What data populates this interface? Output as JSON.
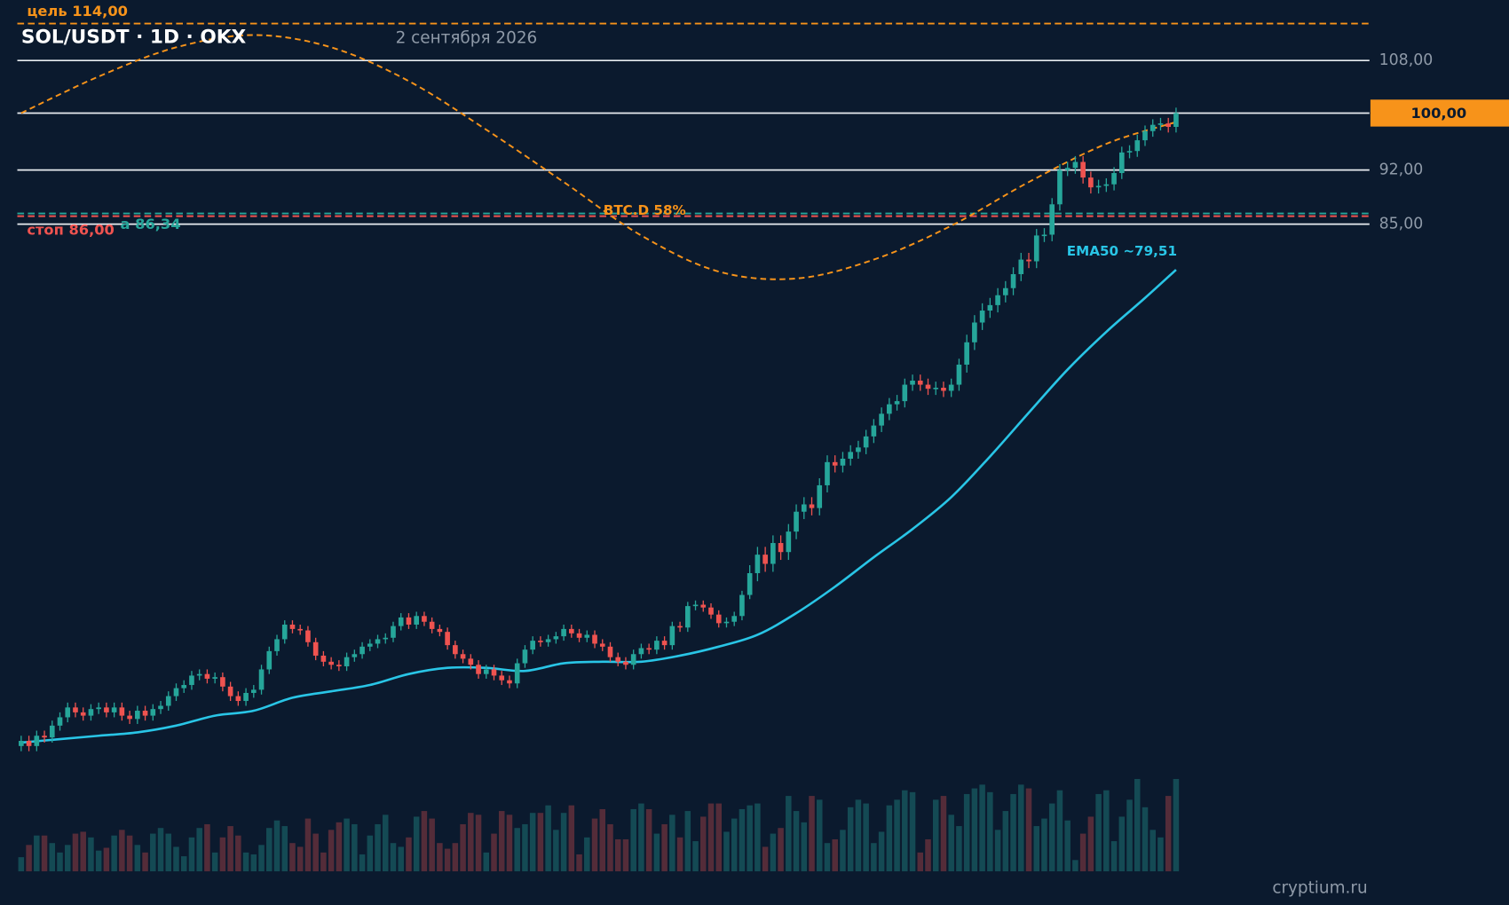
{
  "chart_data": {
    "type": "candlestick",
    "title": "SOL/USDT · 1D · OKX",
    "subtitle": "2 сентября 2026",
    "watermark": "cryptium.ru",
    "log_scale": true,
    "ylim": [
      38,
      118
    ],
    "yticks": [
      {
        "value": 108,
        "label": "108,00"
      },
      {
        "value": 92,
        "label": "92,00"
      },
      {
        "value": 85,
        "label": "85,00"
      }
    ],
    "last_price": {
      "value": 100,
      "label": "100,00",
      "color": "#f7931a"
    },
    "up_color": "#26a69a",
    "down_color": "#ef5350",
    "open": [
      39.6,
      39.9,
      39.6,
      40.2,
      40.1,
      40.8,
      41.3,
      41.9,
      41.6,
      41.4,
      41.8,
      41.9,
      41.6,
      41.9,
      41.4,
      41.2,
      41.7,
      41.4,
      41.8,
      42.0,
      42.6,
      43.1,
      43.3,
      43.9,
      44.0,
      43.7,
      43.8,
      43.2,
      42.6,
      42.3,
      42.8,
      43.0,
      44.3,
      45.5,
      46.3,
      47.3,
      47.0,
      46.9,
      46.1,
      45.2,
      44.8,
      44.6,
      44.5,
      45.1,
      45.3,
      45.8,
      46.0,
      46.3,
      46.4,
      47.2,
      47.8,
      47.3,
      47.9,
      47.5,
      47.0,
      46.8,
      45.9,
      45.3,
      45.0,
      44.6,
      44.0,
      44.3,
      43.9,
      43.6,
      43.4,
      44.7,
      45.6,
      46.2,
      46.1,
      46.3,
      46.5,
      47.0,
      46.7,
      46.4,
      46.6,
      46.0,
      45.8,
      45.1,
      44.8,
      44.6,
      45.3,
      45.7,
      45.6,
      46.2,
      45.9,
      47.2,
      47.1,
      48.6,
      48.7,
      48.5,
      48.0,
      47.4,
      47.5,
      47.9,
      49.4,
      51.0,
      52.4,
      51.7,
      53.3,
      52.6,
      54.2,
      55.8,
      56.4,
      56.1,
      58.0,
      60.0,
      59.7,
      60.3,
      60.9,
      61.3,
      62.3,
      63.3,
      64.4,
      65.3,
      65.6,
      67.2,
      67.6,
      67.2,
      66.8,
      66.9,
      66.6,
      67.2,
      69.2,
      71.5,
      73.6,
      74.9,
      75.5,
      76.6,
      77.4,
      79.0,
      80.7,
      80.5,
      83.6,
      83.7,
      87.5,
      92.0,
      92.3,
      93.1,
      91.0,
      89.7,
      89.9,
      90.1,
      91.6,
      94.4,
      94.6,
      96.1,
      97.4,
      98.3,
      98.5,
      98.0
    ],
    "high": [
      40.2,
      40.2,
      40.5,
      40.5,
      41.1,
      41.6,
      42.2,
      42.2,
      41.9,
      42.1,
      42.2,
      42.2,
      42.2,
      42.2,
      41.7,
      42.0,
      42.0,
      42.1,
      42.3,
      42.9,
      43.4,
      43.6,
      44.2,
      44.3,
      44.3,
      44.1,
      44.1,
      43.5,
      42.9,
      43.1,
      43.3,
      44.6,
      45.8,
      46.6,
      47.6,
      47.6,
      47.3,
      47.2,
      46.4,
      45.5,
      45.1,
      44.9,
      45.4,
      45.6,
      46.1,
      46.3,
      46.6,
      46.7,
      47.5,
      48.1,
      48.1,
      48.2,
      48.2,
      47.8,
      47.3,
      47.1,
      46.2,
      45.6,
      45.3,
      44.9,
      44.6,
      44.6,
      44.2,
      43.9,
      45.0,
      45.9,
      46.5,
      46.5,
      46.6,
      46.8,
      47.3,
      47.3,
      47.0,
      46.9,
      46.9,
      46.3,
      46.1,
      45.4,
      45.1,
      45.6,
      46.0,
      46.0,
      46.5,
      46.5,
      47.5,
      47.5,
      48.9,
      49.0,
      49.0,
      48.8,
      48.3,
      47.8,
      48.2,
      49.7,
      51.6,
      53.0,
      53.0,
      53.9,
      53.9,
      54.8,
      56.4,
      57.0,
      57.0,
      58.6,
      60.6,
      60.6,
      60.9,
      61.5,
      61.9,
      62.9,
      63.9,
      65.0,
      65.9,
      66.2,
      67.8,
      68.2,
      68.2,
      67.8,
      67.5,
      67.5,
      67.8,
      69.8,
      72.3,
      74.4,
      75.7,
      76.3,
      77.4,
      78.2,
      79.8,
      81.5,
      81.5,
      84.4,
      84.5,
      88.3,
      92.8,
      93.1,
      93.9,
      93.9,
      91.8,
      90.7,
      90.9,
      92.4,
      95.2,
      95.4,
      96.9,
      98.2,
      99.1,
      99.3,
      99.3,
      100.8
    ],
    "low": [
      39.3,
      39.3,
      39.3,
      39.8,
      39.8,
      40.5,
      41.0,
      41.3,
      41.1,
      41.1,
      41.5,
      41.3,
      41.3,
      41.1,
      40.9,
      40.9,
      41.1,
      41.1,
      41.5,
      41.7,
      42.3,
      42.8,
      43.0,
      43.6,
      43.4,
      43.4,
      42.9,
      42.3,
      42.0,
      42.0,
      42.5,
      42.7,
      44.0,
      45.2,
      46.0,
      46.7,
      46.6,
      45.8,
      44.9,
      44.5,
      44.3,
      44.2,
      44.2,
      44.8,
      45.0,
      45.5,
      45.7,
      46.0,
      46.1,
      46.9,
      47.0,
      47.0,
      47.2,
      46.7,
      46.5,
      45.6,
      45.0,
      44.7,
      44.3,
      43.7,
      43.7,
      43.6,
      43.3,
      43.1,
      43.1,
      44.4,
      45.3,
      45.8,
      45.8,
      46.0,
      46.2,
      46.4,
      46.1,
      46.1,
      45.7,
      45.5,
      44.8,
      44.5,
      44.3,
      44.3,
      45.0,
      45.3,
      45.3,
      45.6,
      45.6,
      46.8,
      46.8,
      48.3,
      48.2,
      47.7,
      47.1,
      47.1,
      47.2,
      47.6,
      49.1,
      50.4,
      51.1,
      51.1,
      52.0,
      52.0,
      53.6,
      55.2,
      55.5,
      55.5,
      57.4,
      59.1,
      59.1,
      59.7,
      60.3,
      60.7,
      61.7,
      62.7,
      63.8,
      64.7,
      65.0,
      66.6,
      66.6,
      66.2,
      66.2,
      66.0,
      66.0,
      66.6,
      68.4,
      70.7,
      72.8,
      74.1,
      74.7,
      75.8,
      76.6,
      78.2,
      79.7,
      79.7,
      82.8,
      82.9,
      86.7,
      91.2,
      91.5,
      90.2,
      88.9,
      88.9,
      89.1,
      89.3,
      90.8,
      93.6,
      93.8,
      95.3,
      96.6,
      97.5,
      97.2,
      97.2
    ],
    "close": [
      39.9,
      39.6,
      40.2,
      40.1,
      40.8,
      41.3,
      41.9,
      41.6,
      41.4,
      41.8,
      41.9,
      41.6,
      41.9,
      41.4,
      41.2,
      41.7,
      41.4,
      41.8,
      42.0,
      42.6,
      43.1,
      43.3,
      43.9,
      44.0,
      43.7,
      43.8,
      43.2,
      42.6,
      42.3,
      42.8,
      43.0,
      44.3,
      45.5,
      46.3,
      47.3,
      47.0,
      46.9,
      46.1,
      45.2,
      44.8,
      44.6,
      44.5,
      45.1,
      45.3,
      45.8,
      46.0,
      46.3,
      46.4,
      47.2,
      47.8,
      47.3,
      47.9,
      47.5,
      47.0,
      46.8,
      45.9,
      45.3,
      45.0,
      44.6,
      44.0,
      44.3,
      43.9,
      43.6,
      43.4,
      44.7,
      45.6,
      46.2,
      46.1,
      46.3,
      46.5,
      47.0,
      46.7,
      46.4,
      46.6,
      46.0,
      45.8,
      45.1,
      44.8,
      44.6,
      45.3,
      45.7,
      45.6,
      46.2,
      45.9,
      47.2,
      47.1,
      48.6,
      48.7,
      48.5,
      48.0,
      47.4,
      47.5,
      47.9,
      49.4,
      51.0,
      52.4,
      51.7,
      53.3,
      52.6,
      54.2,
      55.8,
      56.4,
      56.1,
      58.0,
      60.0,
      59.7,
      60.3,
      60.9,
      61.3,
      62.3,
      63.3,
      64.4,
      65.3,
      65.6,
      67.2,
      67.6,
      67.2,
      66.8,
      66.9,
      66.6,
      67.2,
      69.2,
      71.5,
      73.6,
      74.9,
      75.5,
      76.6,
      77.4,
      79.0,
      80.7,
      80.5,
      83.6,
      83.7,
      87.5,
      92.0,
      92.3,
      93.1,
      91.0,
      89.7,
      89.9,
      90.1,
      91.6,
      94.4,
      94.6,
      96.1,
      97.4,
      98.3,
      98.5,
      98.0,
      100.0
    ],
    "vlim": [
      0,
      100
    ],
    "volume": [
      15,
      28,
      38,
      38,
      30,
      20,
      28,
      40,
      42,
      36,
      22,
      25,
      38,
      44,
      38,
      28,
      20,
      40,
      46,
      40,
      26,
      16,
      36,
      46,
      50,
      20,
      36,
      48,
      38,
      20,
      18,
      28,
      46,
      54,
      48,
      30,
      26,
      56,
      40,
      20,
      44,
      52,
      56,
      50,
      18,
      38,
      50,
      60,
      30,
      26,
      36,
      58,
      64,
      56,
      30,
      24,
      30,
      50,
      62,
      60,
      20,
      40,
      64,
      60,
      46,
      50,
      62,
      62,
      70,
      44,
      62,
      70,
      18,
      36,
      56,
      66,
      50,
      34,
      34,
      66,
      72,
      66,
      40,
      50,
      60,
      36,
      64,
      32,
      58,
      72,
      72,
      42,
      56,
      66,
      70,
      72,
      26,
      40,
      46,
      80,
      64,
      52,
      80,
      76,
      30,
      34,
      44,
      68,
      76,
      72,
      30,
      42,
      70,
      76,
      86,
      84,
      20,
      34,
      76,
      80,
      60,
      48,
      82,
      88,
      92,
      84,
      44,
      64,
      82,
      92,
      88,
      48,
      56,
      72,
      86,
      54,
      12,
      40,
      58,
      82,
      86,
      32,
      58,
      76,
      98,
      68,
      44,
      36,
      80,
      98
    ],
    "ema": {
      "label": "EMA50 ~79,51",
      "color": "#29c5e6",
      "x": [
        0,
        5,
        10,
        15,
        20,
        25,
        30,
        35,
        40,
        45,
        50,
        55,
        60,
        65,
        70,
        75,
        80,
        85,
        90,
        95,
        100,
        105,
        110,
        115,
        120,
        125,
        130,
        135,
        140,
        145,
        149
      ],
      "values": [
        39.8,
        40.0,
        40.2,
        40.4,
        40.8,
        41.4,
        41.7,
        42.5,
        42.9,
        43.3,
        44.0,
        44.4,
        44.4,
        44.2,
        44.7,
        44.8,
        44.8,
        45.2,
        45.8,
        46.6,
        48.1,
        50.0,
        52.2,
        54.4,
        57.0,
        60.5,
        64.5,
        68.7,
        72.6,
        76.3,
        79.51
      ]
    },
    "overlay": {
      "label": "BTC.D 58%",
      "color": "#f7931a",
      "x": [
        0,
        10,
        20,
        30,
        40,
        50,
        60,
        70,
        80,
        90,
        100,
        110,
        120,
        130,
        140,
        149
      ],
      "values": [
        100.0,
        105.5,
        110.1,
        112.1,
        110.1,
        104.8,
        97.6,
        90.4,
        83.6,
        79.3,
        78.5,
        80.7,
        84.8,
        90.4,
        95.6,
        98.7
      ]
    },
    "levels": [
      {
        "label": "цель 114,00",
        "value": 114,
        "color": "#f7931a"
      },
      {
        "label": "стоп 86,00",
        "value": 86,
        "color": "#ef5350"
      },
      {
        "label": "a 86,34",
        "value": 86.34,
        "color": "#26a69a"
      }
    ]
  }
}
